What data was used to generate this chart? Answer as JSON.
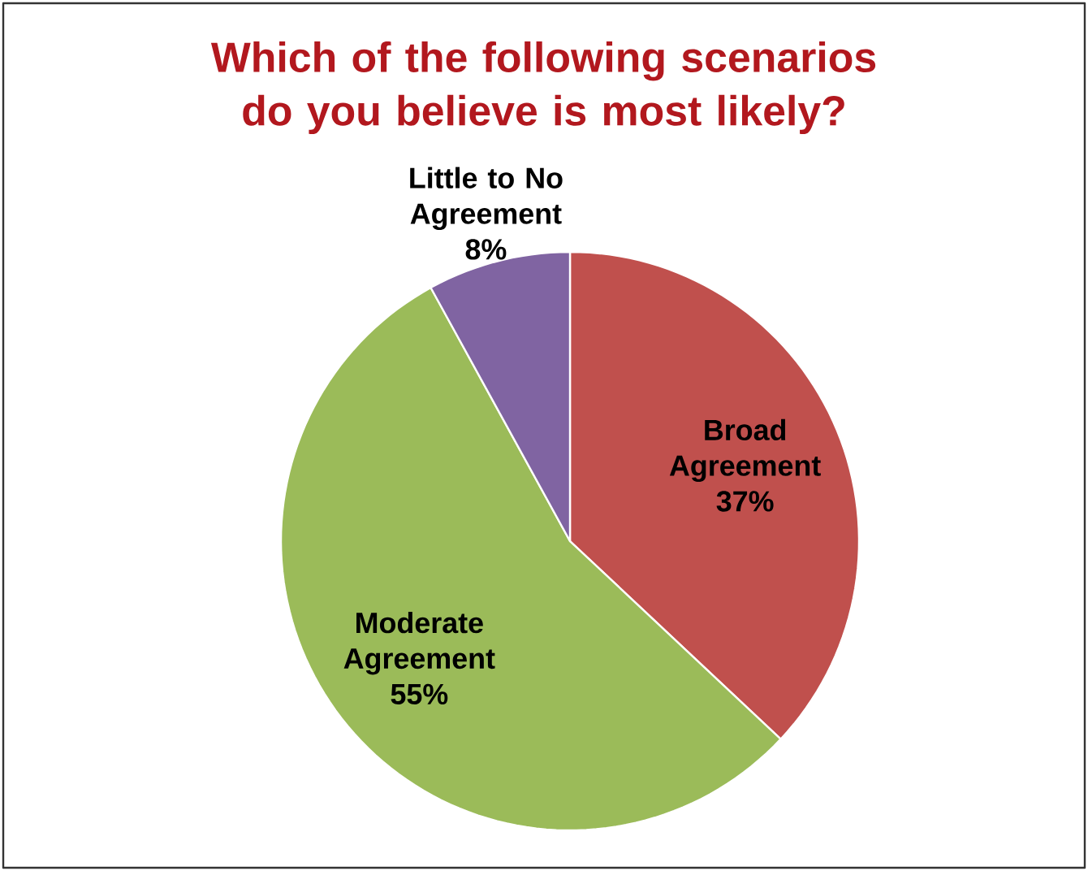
{
  "chart_data": {
    "type": "pie",
    "title": "Which of the following scenarios do you believe is most likely?",
    "categories": [
      "Broad Agreement",
      "Moderate Agreement",
      "Little to No Agreement"
    ],
    "values": [
      37,
      55,
      8
    ],
    "value_labels": [
      "37%",
      "55%",
      "8%"
    ],
    "colors": [
      "#c0504d",
      "#9bbb59",
      "#8064a2"
    ]
  }
}
